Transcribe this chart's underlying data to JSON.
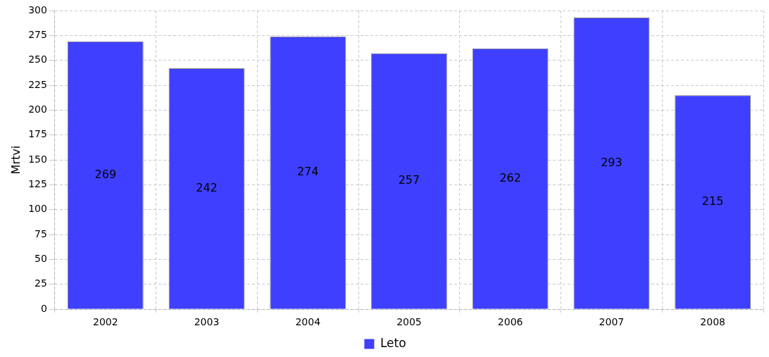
{
  "chart_data": {
    "type": "bar",
    "ylabel": "Mrtvi",
    "categories": [
      "2002",
      "2003",
      "2004",
      "2005",
      "2006",
      "2007",
      "2008"
    ],
    "series": [
      {
        "name": "Leto",
        "color": "#3f3fff",
        "values": [
          269,
          242,
          274,
          257,
          262,
          293,
          215
        ]
      }
    ],
    "ylim": [
      0,
      300
    ],
    "yticks": [
      0,
      25,
      50,
      75,
      100,
      125,
      150,
      175,
      200,
      225,
      250,
      275,
      300
    ],
    "grid": true,
    "legend": "bottom",
    "data_labels": true
  }
}
